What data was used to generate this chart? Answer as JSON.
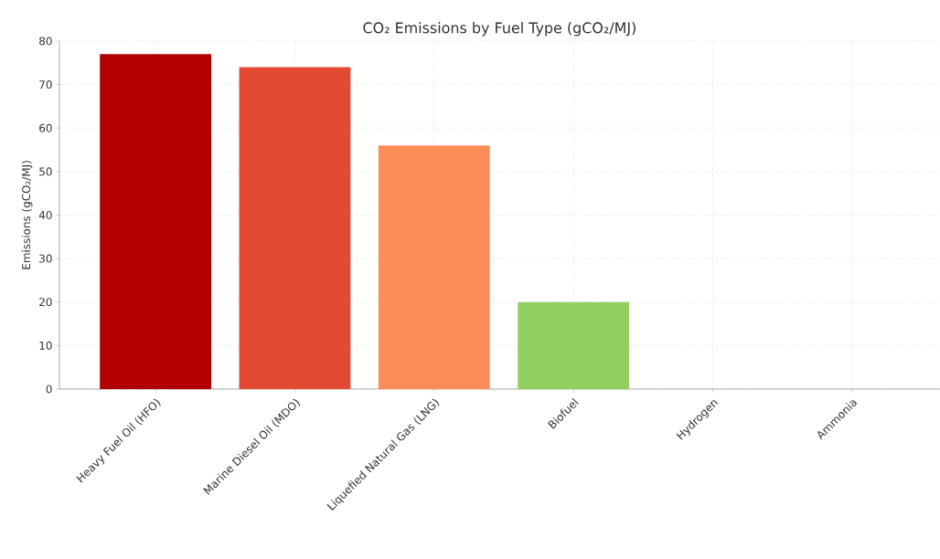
{
  "chart_data": {
    "type": "bar",
    "title": "CO₂ Emissions by Fuel Type (gCO₂/MJ)",
    "ylabel": "Emissions (gCO₂/MJ)",
    "categories": [
      "Heavy Fuel Oil (HFO)",
      "Marine Diesel Oil (MDO)",
      "Liquefied Natural Gas (LNG)",
      "Biofuel",
      "Hydrogen",
      "Ammonia"
    ],
    "values": [
      77,
      74,
      56,
      20,
      0,
      0
    ],
    "colors": [
      "#b30000",
      "#e34a33",
      "#fc8d59",
      "#91cf60",
      "#1a9850",
      "#4575b4"
    ],
    "ylim": [
      0,
      80
    ],
    "yticks": [
      0,
      10,
      20,
      30,
      40,
      50,
      60,
      70,
      80
    ],
    "grid": true
  }
}
